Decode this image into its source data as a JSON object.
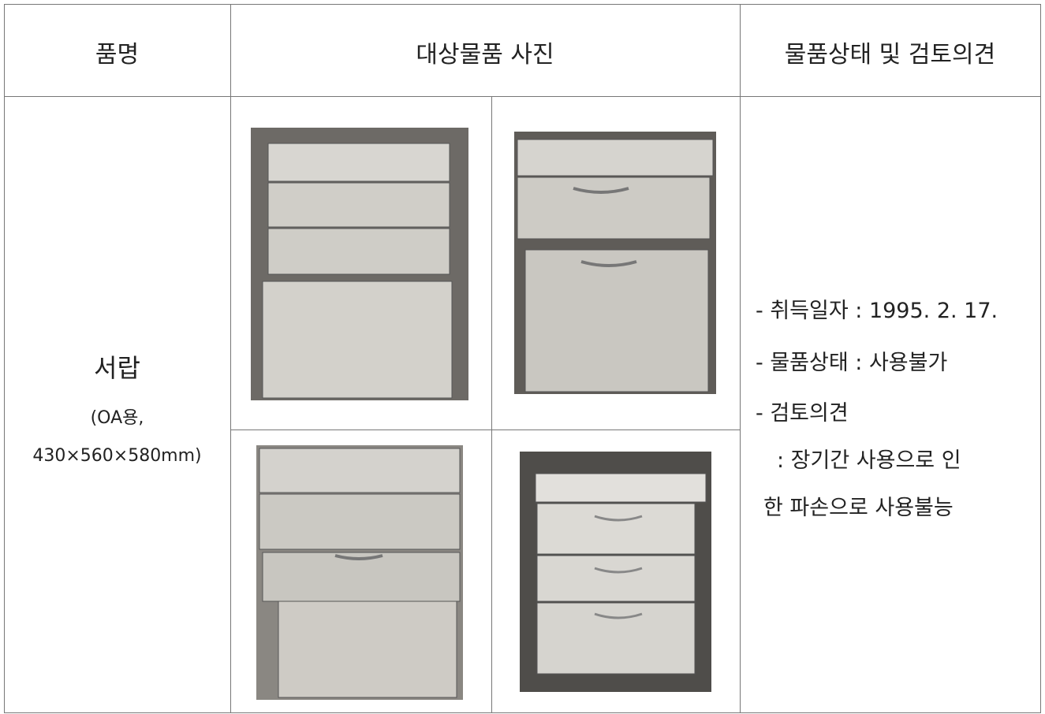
{
  "table": {
    "header": [
      "품명",
      "대상물품 사진",
      "물품상태 및 검토의견"
    ],
    "item": {
      "name": "서랍",
      "spec": [
        "(OA용,",
        "430×560×580mm)"
      ]
    },
    "notes": [
      "- 취득일자 : 1995. 2. 17.",
      "- 물품상태 : 사용불가",
      "- 검토의견",
      ": 장기간 사용으로 인",
      "한 파손으로 사용불능"
    ]
  }
}
